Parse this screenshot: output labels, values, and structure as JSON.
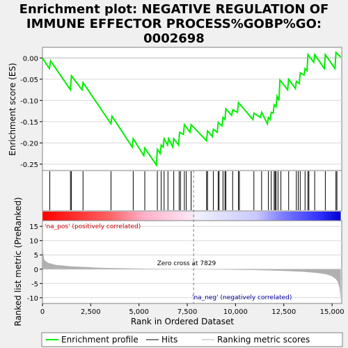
{
  "chart_data": {
    "type": "line",
    "title": "Enrichment plot: NEGATIVE REGULATION OF IMMUNE EFFECTOR PROCESS%GOBP%GO: 0002698",
    "title_lines": [
      "Enrichment plot: NEGATIVE REGULATION OF",
      "IMMUNE EFFECTOR PROCESS%GOBP%GO:",
      "0002698"
    ],
    "colors": {
      "enrichment": "#00ee00",
      "hits": "#000000",
      "metric": "#b0b0b0",
      "zero_line": "#808080",
      "pos_label": "#cc0000",
      "neg_label": "#000099"
    },
    "es_panel": {
      "ylabel": "Enrichment score (ES)",
      "ylim": [
        -0.265,
        0.025
      ],
      "yticks": [
        0.0,
        -0.05,
        -0.1,
        -0.15,
        -0.2,
        -0.25
      ],
      "ytick_labels": [
        "0.00",
        "-0.05",
        "-0.10",
        "-0.15",
        "-0.20",
        "-0.25"
      ],
      "series": {
        "name": "Enrichment profile",
        "x": [
          0,
          360,
          420,
          1450,
          1500,
          2050,
          2100,
          3550,
          3600,
          4650,
          4700,
          5250,
          5300,
          5900,
          5950,
          6100,
          6150,
          6250,
          6300,
          6480,
          6530,
          6750,
          6800,
          7050,
          7100,
          7300,
          7350,
          7650,
          7700,
          8500,
          8550,
          8800,
          8850,
          9050,
          9100,
          9300,
          9350,
          9450,
          9500,
          9800,
          9850,
          10100,
          10150,
          10900,
          10950,
          11300,
          11350,
          11650,
          11700,
          11800,
          11850,
          11950,
          12000,
          12100,
          12150,
          12250,
          12300,
          12700,
          12750,
          13100,
          13150,
          13300,
          13350,
          13550,
          13600,
          13700,
          13750,
          14050,
          14100,
          14600,
          14650,
          15150,
          15200,
          15450
        ],
        "y": [
          0.0,
          -0.025,
          -0.007,
          -0.075,
          -0.042,
          -0.075,
          -0.058,
          -0.155,
          -0.137,
          -0.21,
          -0.19,
          -0.23,
          -0.212,
          -0.252,
          -0.215,
          -0.225,
          -0.205,
          -0.21,
          -0.19,
          -0.205,
          -0.19,
          -0.21,
          -0.19,
          -0.205,
          -0.175,
          -0.18,
          -0.157,
          -0.175,
          -0.157,
          -0.195,
          -0.172,
          -0.185,
          -0.168,
          -0.175,
          -0.152,
          -0.16,
          -0.14,
          -0.145,
          -0.12,
          -0.135,
          -0.122,
          -0.128,
          -0.105,
          -0.145,
          -0.13,
          -0.14,
          -0.128,
          -0.155,
          -0.14,
          -0.145,
          -0.128,
          -0.13,
          -0.11,
          -0.115,
          -0.09,
          -0.1,
          -0.052,
          -0.075,
          -0.05,
          -0.072,
          -0.055,
          -0.06,
          -0.035,
          -0.04,
          -0.025,
          -0.03,
          0.008,
          -0.01,
          0.008,
          -0.025,
          0.008,
          -0.025,
          0.013,
          0.002
        ]
      }
    },
    "hits_panel": {
      "name": "Hits",
      "positions": [
        380,
        1450,
        1500,
        2100,
        3550,
        4700,
        5300,
        5950,
        6150,
        6300,
        6500,
        6800,
        7080,
        7150,
        7350,
        7450,
        7700,
        8500,
        8550,
        8850,
        9100,
        9150,
        9350,
        9450,
        9500,
        9850,
        10150,
        10200,
        10950,
        11350,
        11700,
        11850,
        12000,
        12050,
        12100,
        12200,
        12350,
        12750,
        13150,
        13250,
        13350,
        13600,
        13750,
        13800,
        14100,
        14650,
        15200,
        15250
      ]
    },
    "metric_panel": {
      "name": "Ranking metric scores",
      "ylabel": "Ranked list metric (PreRanked)",
      "xlabel": "Rank in Ordered Dataset",
      "xlim": [
        0,
        15500
      ],
      "ylim": [
        -12,
        17
      ],
      "yticks": [
        15,
        10,
        5,
        0,
        -5,
        -10
      ],
      "xticks": [
        0,
        2500,
        5000,
        7500,
        10000,
        12500,
        15000
      ],
      "xtick_labels": [
        "0",
        "2,500",
        "5,000",
        "7,500",
        "10,000",
        "12,500",
        "15,000"
      ],
      "zero_cross": 7829,
      "zero_cross_label": "Zero cross at 7829",
      "pos_label": "'na_pos' (positively correlated)",
      "neg_label": "'na_neg' (negatively correlated)",
      "curve_x": [
        0,
        30,
        100,
        300,
        700,
        1500,
        3000,
        5000,
        7000,
        7829,
        9000,
        11000,
        12500,
        13500,
        14200,
        14700,
        15000,
        15200,
        15300,
        15380,
        15420,
        15450
      ],
      "curve_y": [
        12.5,
        6,
        3.2,
        2.2,
        1.5,
        1.0,
        0.5,
        0.2,
        0.05,
        0.0,
        -0.1,
        -0.3,
        -0.6,
        -0.9,
        -1.3,
        -1.8,
        -2.5,
        -3.5,
        -4.5,
        -6.5,
        -9,
        -11
      ]
    },
    "legend": [
      "Enrichment profile",
      "Hits",
      "Ranking metric scores"
    ]
  }
}
